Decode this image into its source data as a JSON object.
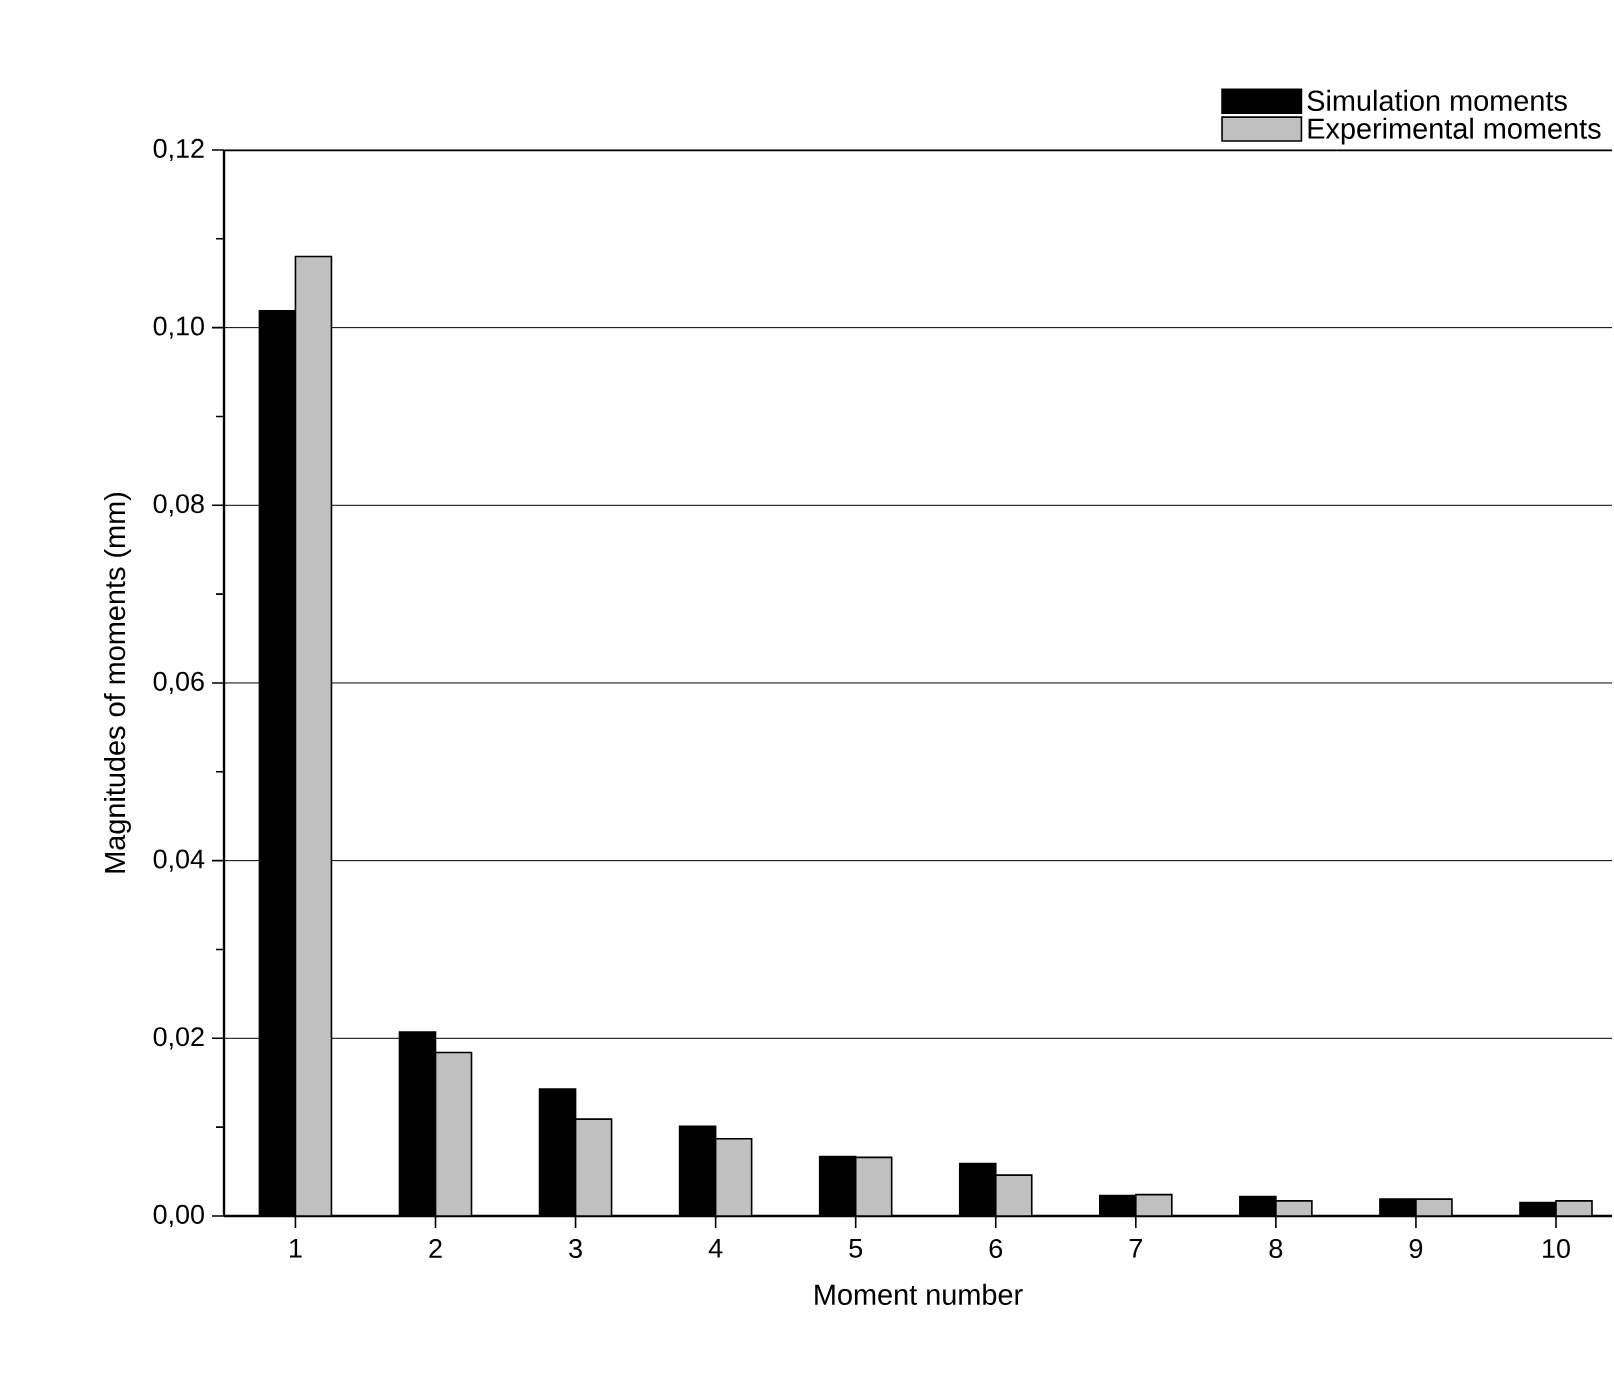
{
  "chart_data": {
    "type": "bar",
    "xlabel": "Moment number",
    "ylabel": "Magnitudes of moments (mm)",
    "categories": [
      "1",
      "2",
      "3",
      "4",
      "5",
      "6",
      "7",
      "8",
      "9",
      "10"
    ],
    "series": [
      {
        "name": "Simulation moments",
        "color": "#000000",
        "values": [
          0.1019,
          0.0207,
          0.0143,
          0.0101,
          0.0067,
          0.0059,
          0.0023,
          0.0022,
          0.0019,
          0.0015
        ]
      },
      {
        "name": "Experimental moments",
        "color": "#c0c0c0",
        "values": [
          0.108,
          0.0184,
          0.0109,
          0.0087,
          0.0066,
          0.0046,
          0.0024,
          0.0017,
          0.0019,
          0.0017
        ]
      }
    ],
    "ylim": [
      0,
      0.12
    ],
    "yticks": [
      {
        "value": 0,
        "label": "0,00"
      },
      {
        "value": 0.01,
        "label": null
      },
      {
        "value": 0.02,
        "label": "0,02"
      },
      {
        "value": 0.03,
        "label": null
      },
      {
        "value": 0.04,
        "label": "0,04"
      },
      {
        "value": 0.05,
        "label": null
      },
      {
        "value": 0.06,
        "label": "0,06"
      },
      {
        "value": 0.07,
        "label": null
      },
      {
        "value": 0.08,
        "label": "0,08"
      },
      {
        "value": 0.09,
        "label": null
      },
      {
        "value": 0.1,
        "label": "0,10"
      },
      {
        "value": 0.11,
        "label": null
      },
      {
        "value": 0.12,
        "label": "0,12"
      }
    ],
    "grid": "y",
    "legend": "top right"
  }
}
